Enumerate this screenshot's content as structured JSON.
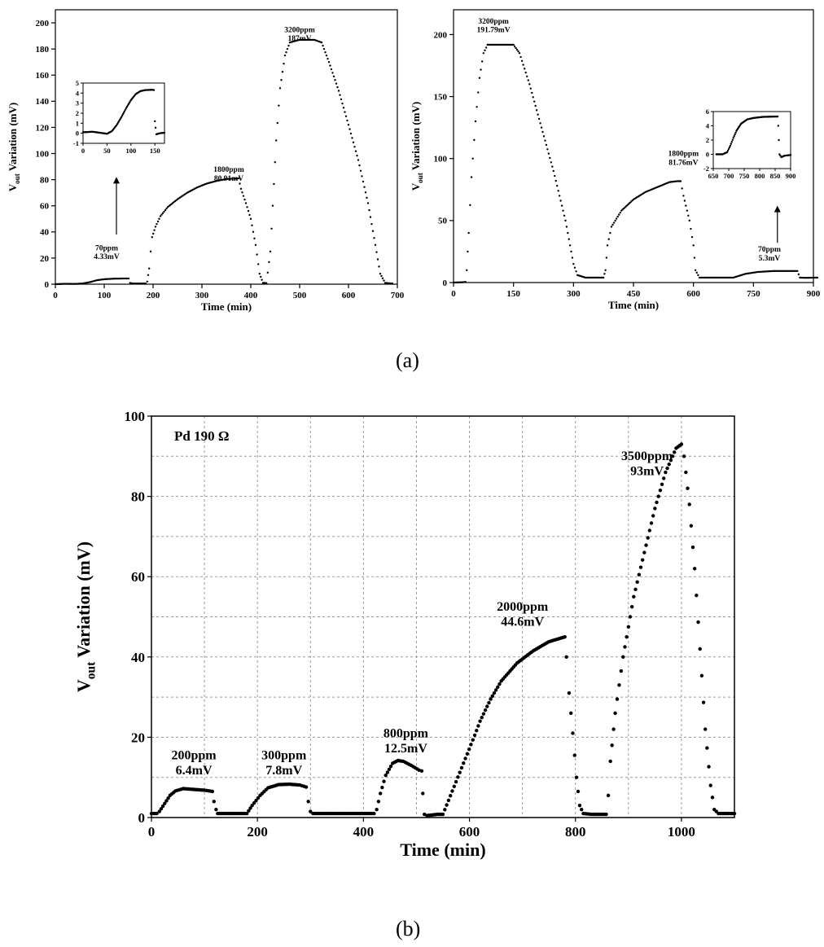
{
  "captions": {
    "a": "(a)",
    "b": "(b)"
  },
  "chart_data": [
    {
      "id": "a-left",
      "type": "scatter",
      "xlabel": "Time (min)",
      "ylabel": {
        "base": "V",
        "sub": "out",
        "rest": " Variation (mV)"
      },
      "xlim": [
        0,
        700
      ],
      "ylim": [
        0,
        210
      ],
      "xticks": [
        0,
        100,
        200,
        300,
        400,
        500,
        600,
        700
      ],
      "yticks": [
        0,
        20,
        40,
        60,
        80,
        100,
        120,
        140,
        160,
        180,
        200
      ],
      "grid": false,
      "annotations": [
        {
          "lines": [
            "70ppm",
            "4.33mV"
          ],
          "x": 105,
          "y": 26
        },
        {
          "lines": [
            "1800ppm",
            "80.91mV"
          ],
          "x": 355,
          "y": 86
        },
        {
          "lines": [
            "3200ppm",
            "187mV"
          ],
          "x": 500,
          "y": 193
        }
      ],
      "arrows": [
        {
          "from": [
            125,
            38
          ],
          "to": [
            125,
            82
          ]
        }
      ],
      "series": [
        {
          "points": [
            [
              0,
              0
            ],
            [
              20,
              0.3
            ],
            [
              40,
              0.2
            ],
            [
              55,
              0.5
            ],
            [
              70,
              1.5
            ],
            [
              85,
              3
            ],
            [
              100,
              3.8
            ],
            [
              120,
              4.2
            ],
            [
              140,
              4.33
            ],
            [
              150,
              4.33
            ],
            [
              153,
              1
            ],
            [
              158,
              0.5
            ],
            [
              185,
              0.5
            ],
            [
              188,
              2
            ],
            [
              192,
              12
            ],
            [
              195,
              25
            ],
            [
              198,
              36
            ],
            [
              205,
              44
            ],
            [
              215,
              52
            ],
            [
              230,
              59
            ],
            [
              250,
              65
            ],
            [
              270,
              70
            ],
            [
              290,
              74
            ],
            [
              310,
              77
            ],
            [
              330,
              79
            ],
            [
              350,
              80.5
            ],
            [
              375,
              80.91
            ],
            [
              380,
              73
            ],
            [
              390,
              62
            ],
            [
              400,
              50
            ],
            [
              410,
              30
            ],
            [
              418,
              8
            ],
            [
              425,
              1
            ],
            [
              432,
              0.8
            ],
            [
              440,
              25
            ],
            [
              445,
              60
            ],
            [
              452,
              110
            ],
            [
              460,
              150
            ],
            [
              470,
              175
            ],
            [
              480,
              185
            ],
            [
              500,
              187
            ],
            [
              530,
              187
            ],
            [
              545,
              185
            ],
            [
              560,
              170
            ],
            [
              580,
              148
            ],
            [
              600,
              122
            ],
            [
              620,
              95
            ],
            [
              640,
              62
            ],
            [
              655,
              30
            ],
            [
              665,
              8
            ],
            [
              675,
              1
            ],
            [
              690,
              0.5
            ]
          ]
        }
      ],
      "inset": {
        "xlim": [
          0,
          170
        ],
        "ylim": [
          -1,
          5
        ],
        "xticks": [
          0,
          50,
          100,
          150
        ],
        "yticks": [
          -1,
          0,
          1,
          2,
          3,
          4,
          5
        ],
        "points": [
          [
            0,
            0.1
          ],
          [
            20,
            0.15
          ],
          [
            35,
            0.05
          ],
          [
            50,
            -0.05
          ],
          [
            60,
            0.2
          ],
          [
            70,
            0.8
          ],
          [
            80,
            1.6
          ],
          [
            90,
            2.5
          ],
          [
            100,
            3.3
          ],
          [
            110,
            3.9
          ],
          [
            120,
            4.2
          ],
          [
            130,
            4.3
          ],
          [
            145,
            4.33
          ],
          [
            148,
            4.3
          ],
          [
            150,
            1.2
          ],
          [
            153,
            -0.1
          ],
          [
            160,
            0
          ],
          [
            170,
            0.05
          ]
        ]
      }
    },
    {
      "id": "a-right",
      "type": "scatter",
      "xlabel": "Time (min)",
      "ylabel": {
        "base": "V",
        "sub": "out",
        "rest": " Variation (mV)"
      },
      "xlim": [
        0,
        900
      ],
      "ylim": [
        0,
        220
      ],
      "xticks": [
        0,
        150,
        300,
        450,
        600,
        750,
        900
      ],
      "yticks": [
        0,
        50,
        100,
        150,
        200
      ],
      "grid": false,
      "annotations": [
        {
          "lines": [
            "3200ppm",
            "191.79mV"
          ],
          "x": 100,
          "y": 209
        },
        {
          "lines": [
            "1800ppm",
            "81.76mV"
          ],
          "x": 575,
          "y": 102
        },
        {
          "lines": [
            "70ppm",
            "5.3mV"
          ],
          "x": 790,
          "y": 25
        }
      ],
      "arrows": [
        {
          "from": [
            810,
            32
          ],
          "to": [
            810,
            62
          ]
        }
      ],
      "series": [
        {
          "points": [
            [
              0,
              0
            ],
            [
              20,
              0.2
            ],
            [
              30,
              0.5
            ],
            [
              33,
              10
            ],
            [
              38,
              40
            ],
            [
              45,
              85
            ],
            [
              55,
              130
            ],
            [
              65,
              165
            ],
            [
              75,
              185
            ],
            [
              85,
              191.79
            ],
            [
              120,
              191.79
            ],
            [
              150,
              191.79
            ],
            [
              165,
              185
            ],
            [
              190,
              160
            ],
            [
              220,
              125
            ],
            [
              250,
              90
            ],
            [
              280,
              50
            ],
            [
              300,
              15
            ],
            [
              310,
              6
            ],
            [
              330,
              4
            ],
            [
              375,
              4
            ],
            [
              380,
              10
            ],
            [
              385,
              30
            ],
            [
              395,
              45
            ],
            [
              420,
              58
            ],
            [
              450,
              67
            ],
            [
              480,
              73
            ],
            [
              510,
              77
            ],
            [
              540,
              81
            ],
            [
              560,
              81.76
            ],
            [
              568,
              81.76
            ],
            [
              575,
              70
            ],
            [
              590,
              50
            ],
            [
              600,
              30
            ],
            [
              605,
              10
            ],
            [
              615,
              4
            ],
            [
              700,
              4
            ],
            [
              730,
              7
            ],
            [
              760,
              8.5
            ],
            [
              800,
              9.3
            ],
            [
              850,
              9.3
            ],
            [
              860,
              9.3
            ],
            [
              866,
              4
            ],
            [
              880,
              3.8
            ],
            [
              910,
              4
            ]
          ]
        }
      ],
      "inset": {
        "xlim": [
          650,
          900
        ],
        "ylim": [
          -2,
          6
        ],
        "xticks": [
          650,
          700,
          750,
          800,
          850,
          900
        ],
        "yticks": [
          -2,
          0,
          2,
          4,
          6
        ],
        "points": [
          [
            660,
            0
          ],
          [
            680,
            0
          ],
          [
            695,
            0.3
          ],
          [
            705,
            1.2
          ],
          [
            715,
            2.3
          ],
          [
            725,
            3.3
          ],
          [
            740,
            4.3
          ],
          [
            760,
            4.9
          ],
          [
            780,
            5.1
          ],
          [
            810,
            5.25
          ],
          [
            850,
            5.3
          ],
          [
            858,
            5.3
          ],
          [
            860,
            4
          ],
          [
            864,
            0
          ],
          [
            870,
            -0.4
          ],
          [
            880,
            -0.2
          ],
          [
            900,
            -0.1
          ]
        ]
      }
    },
    {
      "id": "b",
      "type": "scatter",
      "xlabel": "Time (min)",
      "ylabel": {
        "base": "V",
        "sub": "out",
        "rest": " Variation (mV)"
      },
      "xlim": [
        0,
        1100
      ],
      "ylim": [
        0,
        100
      ],
      "xticks": [
        0,
        200,
        400,
        600,
        800,
        1000
      ],
      "yticks": [
        0,
        20,
        40,
        60,
        80,
        100
      ],
      "grid": true,
      "grid_x_step": 100,
      "grid_y_step": 10,
      "legend_text": "Pd 190 Ω",
      "annotations": [
        {
          "lines": [
            "200ppm",
            "6.4mV"
          ],
          "x": 80,
          "y": 14.5
        },
        {
          "lines": [
            "300ppm",
            "7.8mV"
          ],
          "x": 250,
          "y": 14.5
        },
        {
          "lines": [
            "800ppm",
            "12.5mV"
          ],
          "x": 480,
          "y": 20
        },
        {
          "lines": [
            "2000ppm",
            "44.6mV"
          ],
          "x": 700,
          "y": 51.5
        },
        {
          "lines": [
            "3500ppm",
            "93mV"
          ],
          "x": 935,
          "y": 89
        }
      ],
      "series": [
        {
          "points": [
            [
              0,
              1
            ],
            [
              10,
              1
            ],
            [
              15,
              1.5
            ],
            [
              25,
              3.5
            ],
            [
              35,
              5.5
            ],
            [
              45,
              6.6
            ],
            [
              60,
              7.2
            ],
            [
              80,
              7
            ],
            [
              100,
              6.8
            ],
            [
              115,
              6.5
            ],
            [
              118,
              4
            ],
            [
              122,
              2
            ],
            [
              125,
              1
            ],
            [
              180,
              1
            ],
            [
              190,
              3
            ],
            [
              205,
              5.5
            ],
            [
              220,
              7.4
            ],
            [
              240,
              8.2
            ],
            [
              260,
              8.3
            ],
            [
              280,
              8.1
            ],
            [
              292,
              7.6
            ],
            [
              296,
              4
            ],
            [
              300,
              1.5
            ],
            [
              305,
              1
            ],
            [
              420,
              1
            ],
            [
              425,
              2
            ],
            [
              432,
              6
            ],
            [
              442,
              10.5
            ],
            [
              455,
              13.5
            ],
            [
              465,
              14.2
            ],
            [
              475,
              14
            ],
            [
              490,
              13
            ],
            [
              505,
              11.8
            ],
            [
              510,
              11.6
            ],
            [
              512,
              6
            ],
            [
              515,
              0.8
            ],
            [
              520,
              0.5
            ],
            [
              540,
              0.8
            ],
            [
              550,
              0.8
            ],
            [
              610,
              20.5
            ],
            [
              620,
              24
            ],
            [
              640,
              29.5
            ],
            [
              660,
              34
            ],
            [
              690,
              38.5
            ],
            [
              720,
              41.5
            ],
            [
              750,
              43.8
            ],
            [
              770,
              44.6
            ],
            [
              780,
              45
            ],
            [
              783,
              40
            ],
            [
              788,
              31
            ],
            [
              795,
              21
            ],
            [
              802,
              10
            ],
            [
              808,
              3
            ],
            [
              815,
              1
            ],
            [
              830,
              0.8
            ],
            [
              858,
              0.8
            ],
            [
              862,
              5.5
            ],
            [
              866,
              14
            ],
            [
              875,
              26
            ],
            [
              890,
              40
            ],
            [
              910,
              55
            ],
            [
              930,
              66
            ],
            [
              950,
              77
            ],
            [
              970,
              86
            ],
            [
              990,
              92
            ],
            [
              1000,
              93
            ],
            [
              1005,
              90
            ],
            [
              1015,
              78
            ],
            [
              1025,
              62
            ],
            [
              1035,
              42
            ],
            [
              1045,
              22
            ],
            [
              1055,
              8
            ],
            [
              1062,
              2
            ],
            [
              1070,
              1
            ],
            [
              1100,
              1
            ]
          ]
        }
      ]
    }
  ]
}
